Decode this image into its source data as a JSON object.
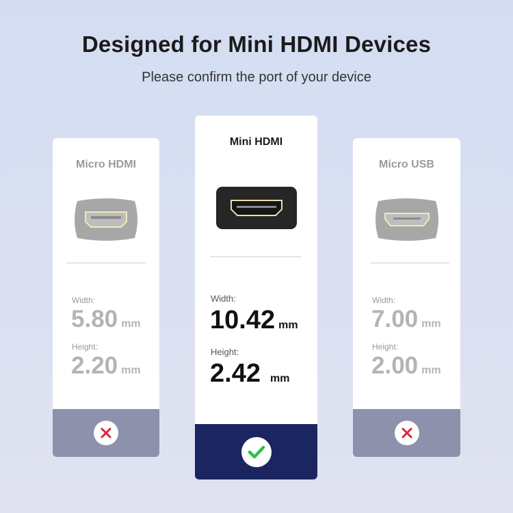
{
  "header": {
    "title": "Designed for Mini HDMI Devices",
    "subtitle": "Please confirm the port of your device"
  },
  "cards": [
    {
      "name": "Micro HDMI",
      "width_label": "Width:",
      "width": "5.80",
      "height_label": "Height:",
      "height": "2.20",
      "unit": "mm",
      "compatible": false,
      "status_icon": "x-icon"
    },
    {
      "name": "Mini HDMI",
      "width_label": "Width:",
      "width": "10.42",
      "height_label": "Height:",
      "height": "2.42",
      "unit": "mm",
      "compatible": true,
      "status_icon": "check-icon"
    },
    {
      "name": "Micro USB",
      "width_label": "Width:",
      "width": "7.00",
      "height_label": "Height:",
      "height": "2.00",
      "unit": "mm",
      "compatible": false,
      "status_icon": "x-icon"
    }
  ],
  "colors": {
    "selected_band": "#1b2560",
    "unselected_band": "#8d91ab",
    "check": "#2fbf4a",
    "cross": "#e0243a"
  }
}
